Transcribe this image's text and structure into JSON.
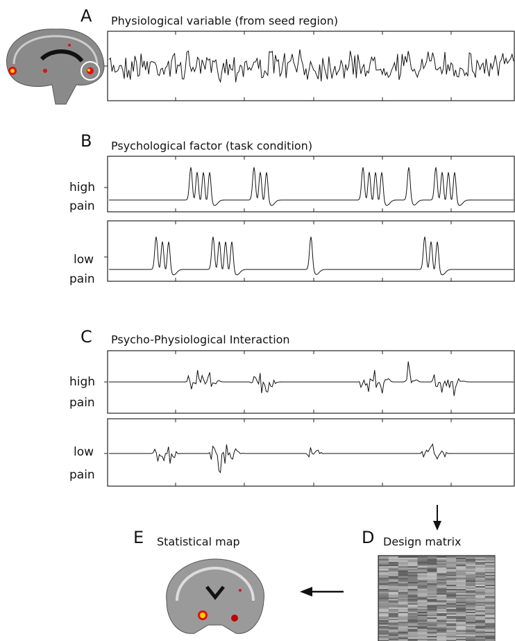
{
  "panels": [
    {
      "letter": "A",
      "title": "Physiological variable (from seed region)"
    },
    {
      "letter": "B",
      "title": "Psychological factor (task condition)",
      "rows": [
        {
          "line1": "high",
          "line2": "pain"
        },
        {
          "line1": "low",
          "line2": "pain"
        }
      ]
    },
    {
      "letter": "C",
      "title": "Psycho-Physiological Interaction",
      "rows": [
        {
          "line1": "high",
          "line2": "pain"
        },
        {
          "line1": "low",
          "line2": "pain"
        }
      ]
    },
    {
      "letter": "D",
      "title": "Design matrix"
    },
    {
      "letter": "E",
      "title": "Statistical map"
    }
  ]
}
